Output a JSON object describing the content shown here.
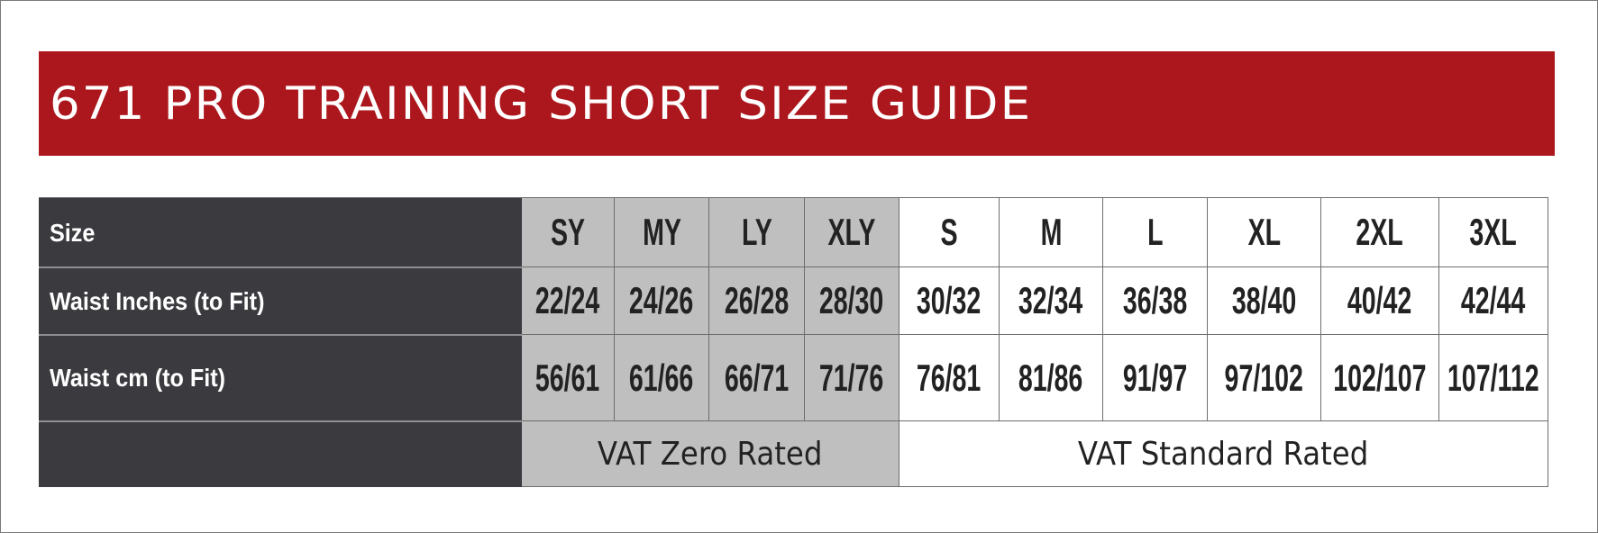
{
  "title": "671 PRO TRAINING SHORT SIZE GUIDE",
  "colors": {
    "banner": "#ab171d",
    "label_column": "#3b3a3f",
    "youth_columns": "#bfbfc0",
    "adult_columns": "#ffffff"
  },
  "table": {
    "row_labels": [
      "Size",
      "Waist Inches (to Fit)",
      "Waist cm (to Fit)",
      ""
    ],
    "sizes": [
      "SY",
      "MY",
      "LY",
      "XLY",
      "S",
      "M",
      "L",
      "XL",
      "2XL",
      "3XL"
    ],
    "waist_inches": [
      "22/24",
      "24/26",
      "26/28",
      "28/30",
      "30/32",
      "32/34",
      "36/38",
      "38/40",
      "40/42",
      "42/44"
    ],
    "waist_cm": [
      "56/61",
      "61/66",
      "66/71",
      "71/76",
      "76/81",
      "81/86",
      "91/97",
      "97/102",
      "102/107",
      "107/112"
    ],
    "vat": [
      "VAT Zero Rated",
      "VAT Standard Rated"
    ]
  }
}
